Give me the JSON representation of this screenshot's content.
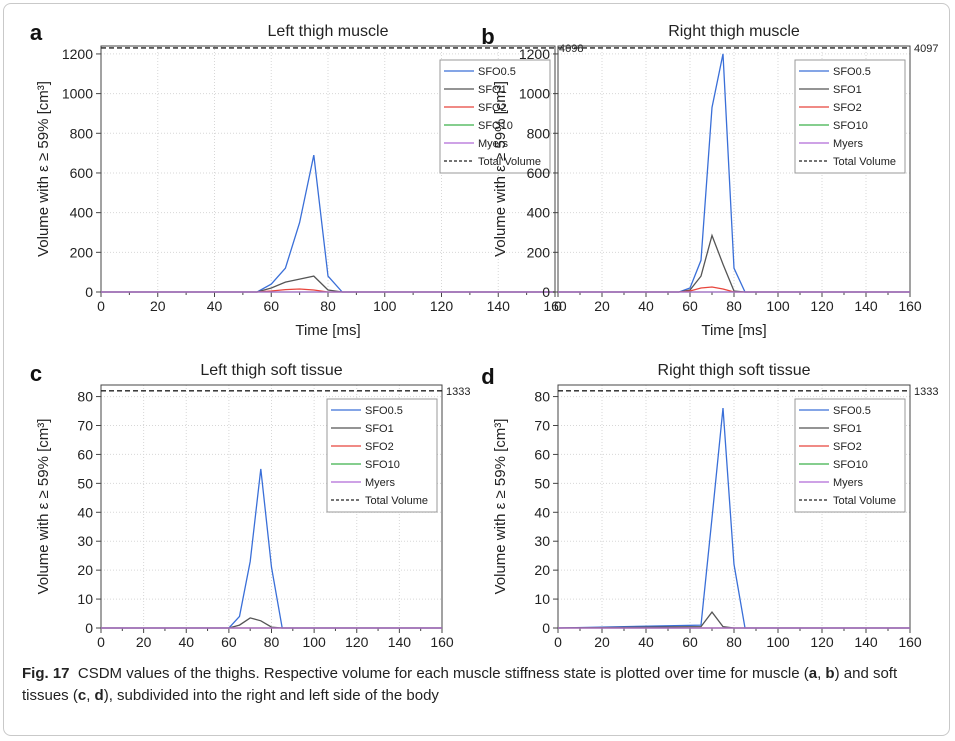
{
  "caption": {
    "figure_label": "Fig. 17",
    "text_1": "CSDM values of the thighs. Respective volume for each muscle stiffness state is plotted over time for muscle (",
    "ref_a": "a",
    "sep_1": ", ",
    "ref_b": "b",
    "text_2": ") and soft tissues (",
    "ref_c": "c",
    "sep_2": ", ",
    "ref_d": "d",
    "text_3": "), subdivided into the right and left side of the body"
  },
  "legend_entries": [
    "SFO0.5",
    "SFO1",
    "SFO2",
    "SFO10",
    "Myers",
    "Total Volume"
  ],
  "colors": {
    "SFO0.5": "#3a6fd8",
    "SFO1": "#555555",
    "SFO2": "#e8453c",
    "SFO10": "#3cb04a",
    "Myers": "#b06ad6",
    "Total Volume": "#222222"
  },
  "chart_data": [
    {
      "panel_label": "a",
      "type": "line",
      "title": "Left thigh muscle",
      "xlabel": "Time [ms]",
      "ylabel": "Volume with ε ≥ 59% [cm³]",
      "xlim": [
        0,
        160
      ],
      "ylim": [
        0,
        1240
      ],
      "xticks": [
        0,
        20,
        40,
        60,
        80,
        100,
        120,
        140,
        160
      ],
      "yticks": [
        0,
        200,
        400,
        600,
        800,
        1000,
        1200
      ],
      "grid": true,
      "legend_position": "top-right",
      "total_volume_label": "4098",
      "total_volume_line_y": 1230,
      "series": [
        {
          "name": "SFO0.5",
          "x": [
            0,
            55,
            60,
            65,
            70,
            75,
            80,
            85,
            160
          ],
          "y": [
            0,
            0,
            40,
            120,
            350,
            690,
            80,
            0,
            0
          ]
        },
        {
          "name": "SFO1",
          "x": [
            0,
            55,
            60,
            65,
            70,
            75,
            80,
            85,
            160
          ],
          "y": [
            0,
            0,
            20,
            50,
            65,
            80,
            10,
            0,
            0
          ]
        },
        {
          "name": "SFO2",
          "x": [
            0,
            55,
            60,
            65,
            70,
            75,
            80,
            160
          ],
          "y": [
            0,
            0,
            5,
            12,
            15,
            10,
            0,
            0
          ]
        },
        {
          "name": "SFO10",
          "x": [
            0,
            160
          ],
          "y": [
            0,
            0
          ]
        },
        {
          "name": "Myers",
          "x": [
            0,
            160
          ],
          "y": [
            0,
            0
          ]
        }
      ]
    },
    {
      "panel_label": "b",
      "type": "line",
      "title": "Right thigh muscle",
      "xlabel": "Time [ms]",
      "ylabel": "Volume with ε ≥ 59% [cm³]",
      "xlim": [
        0,
        160
      ],
      "ylim": [
        0,
        1240
      ],
      "xticks": [
        0,
        20,
        40,
        60,
        80,
        100,
        120,
        140,
        160
      ],
      "yticks": [
        0,
        200,
        400,
        600,
        800,
        1000,
        1200
      ],
      "grid": true,
      "legend_position": "top-right",
      "total_volume_label": "4097",
      "total_volume_line_y": 1230,
      "series": [
        {
          "name": "SFO0.5",
          "x": [
            0,
            55,
            60,
            65,
            70,
            75,
            80,
            85,
            160
          ],
          "y": [
            0,
            0,
            20,
            160,
            930,
            1200,
            120,
            0,
            0
          ]
        },
        {
          "name": "SFO1",
          "x": [
            0,
            55,
            60,
            65,
            70,
            75,
            80,
            85,
            160
          ],
          "y": [
            0,
            0,
            10,
            80,
            285,
            140,
            5,
            0,
            0
          ]
        },
        {
          "name": "SFO2",
          "x": [
            0,
            55,
            60,
            65,
            70,
            75,
            80,
            160
          ],
          "y": [
            0,
            0,
            5,
            20,
            25,
            15,
            0,
            0
          ]
        },
        {
          "name": "SFO10",
          "x": [
            0,
            160
          ],
          "y": [
            0,
            0
          ]
        },
        {
          "name": "Myers",
          "x": [
            0,
            160
          ],
          "y": [
            0,
            0
          ]
        }
      ]
    },
    {
      "panel_label": "c",
      "type": "line",
      "title": "Left thigh soft tissue",
      "xlabel": "Time [ms]",
      "ylabel": "Volume with ε ≥ 59% [cm³]",
      "xlim": [
        0,
        160
      ],
      "ylim": [
        0,
        84
      ],
      "xticks": [
        0,
        20,
        40,
        60,
        80,
        100,
        120,
        140,
        160
      ],
      "yticks": [
        0,
        10,
        20,
        30,
        40,
        50,
        60,
        70,
        80
      ],
      "grid": true,
      "legend_position": "top-right",
      "total_volume_label": "1333",
      "total_volume_line_y": 82,
      "series": [
        {
          "name": "SFO0.5",
          "x": [
            0,
            60,
            65,
            70,
            75,
            80,
            85,
            160
          ],
          "y": [
            0,
            0,
            4,
            23,
            55,
            21,
            0,
            0
          ]
        },
        {
          "name": "SFO1",
          "x": [
            0,
            60,
            65,
            70,
            75,
            80,
            85,
            160
          ],
          "y": [
            0,
            0,
            1,
            3.5,
            2.5,
            0.3,
            0,
            0
          ]
        },
        {
          "name": "SFO2",
          "x": [
            0,
            160
          ],
          "y": [
            0,
            0
          ]
        },
        {
          "name": "SFO10",
          "x": [
            0,
            160
          ],
          "y": [
            0,
            0
          ]
        },
        {
          "name": "Myers",
          "x": [
            0,
            160
          ],
          "y": [
            0,
            0
          ]
        }
      ]
    },
    {
      "panel_label": "d",
      "type": "line",
      "title": "Right thigh soft tissue",
      "xlabel": "Time [ms]",
      "ylabel": "Volume with ε ≥ 59% [cm³]",
      "xlim": [
        0,
        160
      ],
      "ylim": [
        0,
        84
      ],
      "xticks": [
        0,
        20,
        40,
        60,
        80,
        100,
        120,
        140,
        160
      ],
      "yticks": [
        0,
        10,
        20,
        30,
        40,
        50,
        60,
        70,
        80
      ],
      "grid": true,
      "legend_position": "top-right",
      "total_volume_label": "1333",
      "total_volume_line_y": 82,
      "series": [
        {
          "name": "SFO0.5",
          "x": [
            0,
            65,
            70,
            75,
            80,
            85,
            160
          ],
          "y": [
            0,
            1,
            38,
            76,
            22,
            0,
            0
          ]
        },
        {
          "name": "SFO1",
          "x": [
            0,
            65,
            70,
            75,
            80,
            160
          ],
          "y": [
            0,
            0.5,
            5.5,
            0.5,
            0,
            0
          ]
        },
        {
          "name": "SFO2",
          "x": [
            0,
            160
          ],
          "y": [
            0,
            0
          ]
        },
        {
          "name": "SFO10",
          "x": [
            0,
            160
          ],
          "y": [
            0,
            0
          ]
        },
        {
          "name": "Myers",
          "x": [
            0,
            160
          ],
          "y": [
            0,
            0
          ]
        }
      ]
    }
  ]
}
